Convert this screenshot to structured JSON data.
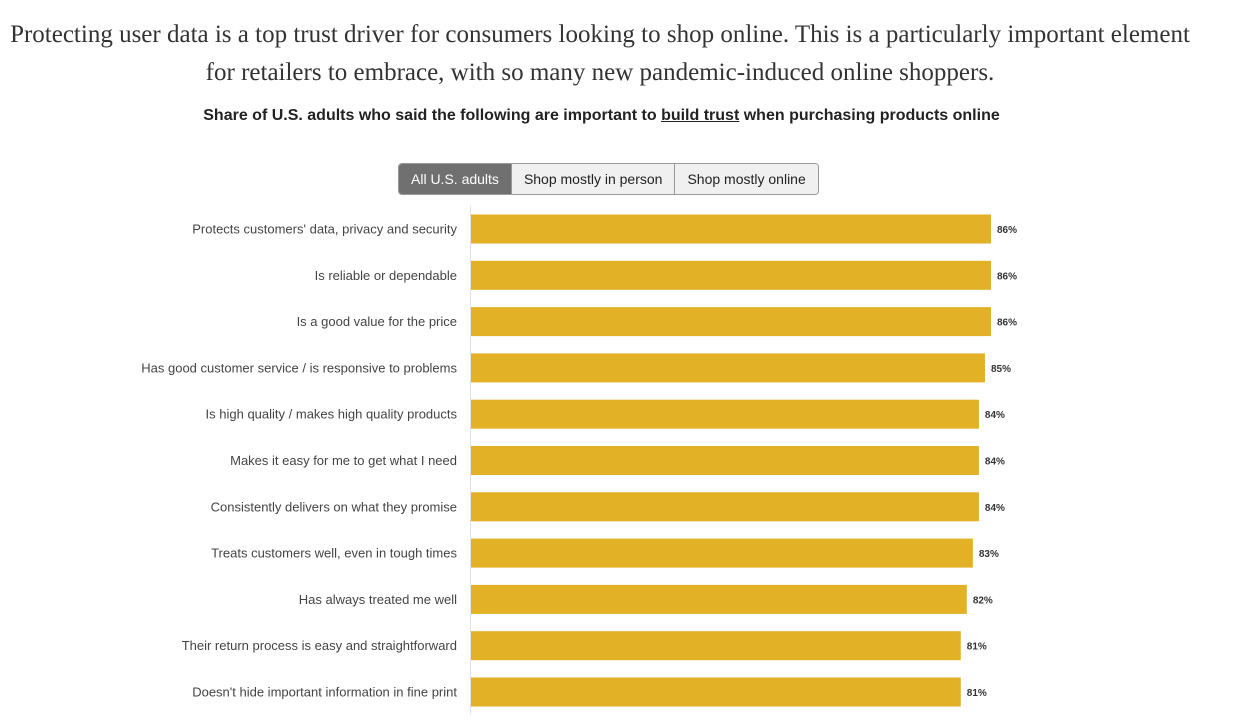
{
  "intro": {
    "line1": "Protecting user data is a top trust driver for consumers looking to shop online. This is a particularly important element",
    "line2": "for retailers to embrace, with so many new pandemic-induced online shoppers."
  },
  "subtitle": {
    "before": "Share of U.S. adults who said the following are important to ",
    "link": "build trust",
    "after": " when purchasing products online"
  },
  "tabs": [
    {
      "label": "All U.S. adults",
      "active": true
    },
    {
      "label": "Shop mostly in person",
      "active": false
    },
    {
      "label": "Shop mostly online",
      "active": false
    }
  ],
  "colors": {
    "bar": "#E2B125",
    "active_tab": "#707070"
  },
  "chart_data": {
    "type": "bar",
    "orientation": "horizontal",
    "title": "Share of U.S. adults who said the following are important to build trust when purchasing products online",
    "categories": [
      "Protects customers' data, privacy and security",
      "Is reliable or dependable",
      "Is a good value for the price",
      "Has good customer service / is responsive to problems",
      "Is high quality / makes high quality products",
      "Makes it easy for me to get what I need",
      "Consistently delivers on what they promise",
      "Treats customers well, even in tough times",
      "Has always treated me well",
      "Their return process is easy and straightforward",
      "Doesn't hide important information in fine print"
    ],
    "values": [
      86,
      86,
      86,
      85,
      84,
      84,
      84,
      83,
      82,
      81,
      81
    ],
    "value_labels": [
      "86%",
      "86%",
      "86%",
      "85%",
      "84%",
      "84%",
      "84%",
      "83%",
      "82%",
      "81%",
      "81%"
    ],
    "unit": "%",
    "xlim": [
      0,
      100
    ],
    "grid": false,
    "legend": "none"
  }
}
